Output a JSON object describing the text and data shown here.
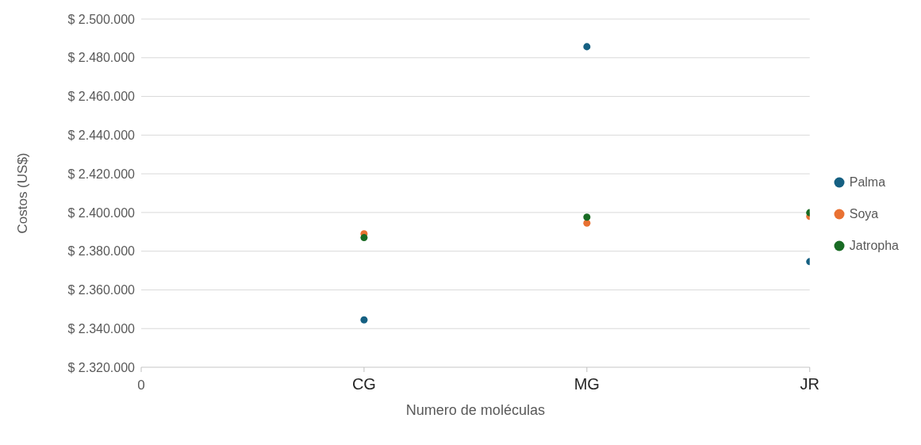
{
  "chart_data": {
    "type": "scatter",
    "xlabel": "Numero de moléculas",
    "ylabel": "Costos (US$)",
    "categories": [
      "0",
      "CG",
      "MG",
      "JR"
    ],
    "ylim": [
      2320000,
      2500000
    ],
    "yticks": [
      {
        "value": 2320000,
        "label": "$ 2.320.000"
      },
      {
        "value": 2340000,
        "label": "$ 2.340.000"
      },
      {
        "value": 2360000,
        "label": "$ 2.360.000"
      },
      {
        "value": 2380000,
        "label": "$ 2.380.000"
      },
      {
        "value": 2400000,
        "label": "$ 2.400.000"
      },
      {
        "value": 2420000,
        "label": "$ 2.420.000"
      },
      {
        "value": 2440000,
        "label": "$ 2.440.000"
      },
      {
        "value": 2460000,
        "label": "$ 2.460.000"
      },
      {
        "value": 2480000,
        "label": "$ 2.480.000"
      },
      {
        "value": 2500000,
        "label": "$ 2.500.000"
      }
    ],
    "grid": "y",
    "legend": "right",
    "marker": "circle",
    "series": [
      {
        "name": "Palma",
        "color": "#156082",
        "x": [
          "CG",
          "MG",
          "JR"
        ],
        "values": [
          2344500,
          2485700,
          2374600
        ]
      },
      {
        "name": "Soya",
        "color": "#e97132",
        "x": [
          "CG",
          "MG",
          "JR"
        ],
        "values": [
          2389000,
          2394500,
          2398000
        ]
      },
      {
        "name": "Jatropha",
        "color": "#196b24",
        "x": [
          "CG",
          "MG",
          "JR"
        ],
        "values": [
          2387000,
          2397600,
          2399900
        ]
      }
    ]
  }
}
